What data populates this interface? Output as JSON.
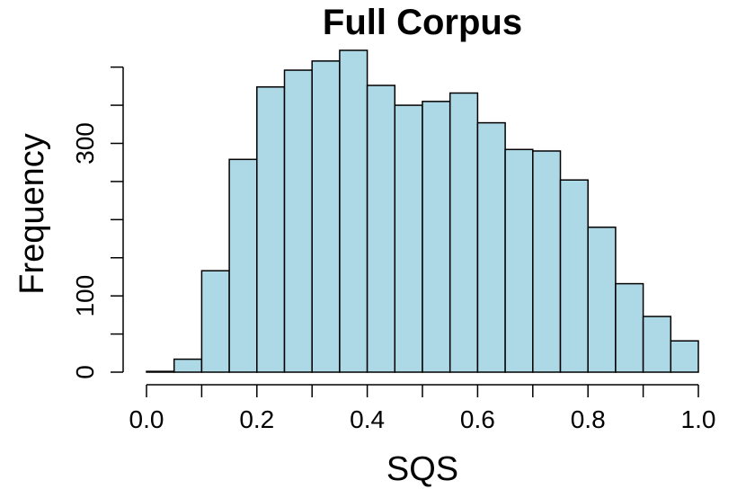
{
  "chart_data": {
    "type": "bar",
    "title": "Full Corpus",
    "xlabel": "SQS",
    "ylabel": "Frequency",
    "bin_edges": [
      0.0,
      0.05,
      0.1,
      0.15,
      0.2,
      0.25,
      0.3,
      0.35,
      0.4,
      0.45,
      0.5,
      0.55,
      0.6,
      0.65,
      0.7,
      0.75,
      0.8,
      0.85,
      0.9,
      0.95,
      1.0
    ],
    "values": [
      1,
      17,
      133,
      279,
      374,
      396,
      408,
      422,
      376,
      350,
      355,
      366,
      327,
      292,
      290,
      252,
      190,
      116,
      73,
      41
    ],
    "xlim": [
      0.0,
      1.0
    ],
    "ylim": [
      0,
      422
    ],
    "x_ticks": [
      "0.0",
      "0.2",
      "0.4",
      "0.6",
      "0.8",
      "1.0"
    ],
    "y_ticks": [
      "0",
      "100",
      "300"
    ],
    "bar_color": "#ADD8E6",
    "grid": false
  }
}
